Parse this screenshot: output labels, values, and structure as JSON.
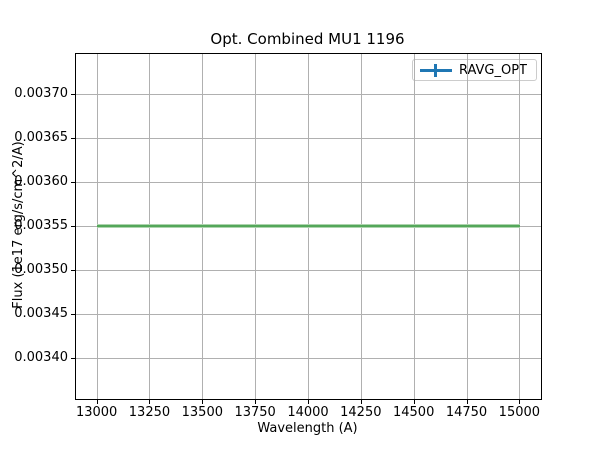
{
  "chart_data": {
    "type": "line",
    "title": "Opt. Combined MU1 1196",
    "xlabel": "Wavelength (A)",
    "ylabel": "Flux (1e17 erg/s/cm^2/A)",
    "xlim": [
      12900,
      15100
    ],
    "ylim": [
      0.0033535,
      0.0037455
    ],
    "xticks": [
      13000,
      13250,
      13500,
      13750,
      14000,
      14250,
      14500,
      14750,
      15000
    ],
    "xtick_labels": [
      "13000",
      "13250",
      "13500",
      "13750",
      "14000",
      "14250",
      "14500",
      "14750",
      "15000"
    ],
    "yticks": [
      0.0034,
      0.00345,
      0.0035,
      0.00355,
      0.0036,
      0.00365,
      0.0037
    ],
    "ytick_labels": [
      "0.00340",
      "0.00345",
      "0.00350",
      "0.00355",
      "0.00360",
      "0.00365",
      "0.00370"
    ],
    "grid": true,
    "grid_color": "#b0b0b0",
    "legend": {
      "position": "upper-right",
      "entries": [
        {
          "label": "RAVG_OPT",
          "handle": "errorbar",
          "color": "#1f77b4"
        }
      ]
    },
    "series": [
      {
        "name": "RAVG_OPT",
        "x": [
          13000,
          15000
        ],
        "y": [
          0.00355,
          0.00355
        ],
        "drawn_color": "#54a75a",
        "legend_color": "#1f77b4"
      }
    ]
  }
}
